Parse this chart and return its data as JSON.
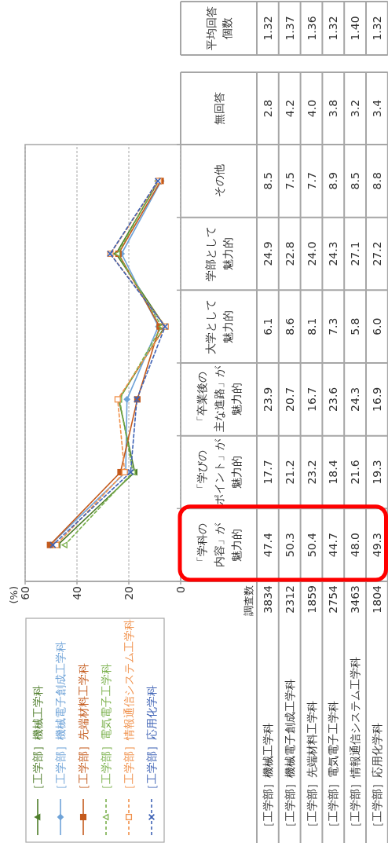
{
  "chart_data": [
    {
      "type": "line",
      "orientation": "horizontal",
      "annotations": [
        "(%)"
      ],
      "categories": [
        "その他",
        "学部として魅力的",
        "大学として魅力的",
        "「卒業後の主な進路」が魅力的",
        "「学びのポイント」が魅力的",
        "「学科の内容」が魅力的"
      ],
      "series": [
        {
          "name": "［工学部］機械工学科",
          "color": "#4e7d2a",
          "marker": "triangle",
          "line_style": "solid",
          "values": [
            8.5,
            24.9,
            6.1,
            23.9,
            17.7,
            47.4
          ],
          "value_labels": [
            "8.5",
            "24.9",
            "6.1",
            "23.9",
            "17.7",
            "47.4"
          ]
        },
        {
          "name": "［工学部］機械電子創成工学科",
          "color": "#6fa3d8",
          "marker": "diamond",
          "line_style": "solid",
          "values": [
            7.5,
            22.8,
            8.6,
            20.7,
            21.2,
            50.3
          ],
          "value_labels": [
            "7.5",
            "22.8",
            "8.6",
            "20.7",
            "21.2",
            "50.3"
          ]
        },
        {
          "name": "［工学部］先端材料工学科",
          "color": "#c45a1c",
          "marker": "square",
          "line_style": "solid",
          "values": [
            7.7,
            24.0,
            8.1,
            16.7,
            23.2,
            50.4
          ],
          "value_labels": [
            "7.7",
            "24.0",
            "8.1",
            "16.7",
            "23.2",
            "50.4"
          ]
        },
        {
          "name": "［工学部］電気電子工学科",
          "color": "#7ab04c",
          "marker": "triangle",
          "line_style": "dashed",
          "values": [
            8.9,
            24.3,
            7.3,
            23.6,
            18.4,
            44.7
          ],
          "value_labels": [
            "8.9",
            "24.3",
            "7.3",
            "23.6",
            "18.4",
            "44.7"
          ]
        },
        {
          "name": "［工学部］情報通信システム工学科",
          "color": "#f0904a",
          "marker": "square",
          "line_style": "dashed",
          "values": [
            8.5,
            27.1,
            5.8,
            24.3,
            21.6,
            48.0
          ],
          "value_labels": [
            "8.5",
            "27.1",
            "5.8",
            "24.3",
            "21.6",
            "48.0"
          ]
        },
        {
          "name": "［工学部］応用化学科",
          "color": "#3f63b5",
          "marker": "cross",
          "line_style": "dashed",
          "values": [
            8.8,
            27.2,
            6.0,
            16.9,
            19.3,
            49.3
          ],
          "value_labels": [
            "8.8",
            "27.2",
            "6.0",
            "16.9",
            "19.3",
            "49.3"
          ]
        }
      ],
      "xlim": [
        60,
        0
      ],
      "xticks": [
        0,
        20,
        40,
        60
      ],
      "grid": "x",
      "legend": "bottom"
    },
    {
      "type": "other",
      "categories": [
        "［工学部］機械工学科",
        "［工学部］機械電子創成工学科",
        "［工学部］先端材料工学科",
        "［工学部］電気電子工学科",
        "［工学部］情報通信システム工学科",
        "［工学部］応用化学科"
      ],
      "series": [
        {
          "name": "平均回答個数",
          "values": [
            1.32,
            1.37,
            1.36,
            1.32,
            1.4,
            1.32
          ],
          "value_labels": [
            "1.32",
            "1.37",
            "1.36",
            "1.32",
            "1.40",
            "1.32"
          ]
        },
        {
          "name": "無回答",
          "values": [
            2.8,
            4.2,
            4.0,
            3.8,
            3.2,
            3.4
          ],
          "value_labels": [
            "2.8",
            "4.2",
            "4.0",
            "3.8",
            "3.2",
            "3.4"
          ]
        },
        {
          "name": "調査数",
          "values": [
            3834,
            2312,
            1859,
            2754,
            3463,
            1804
          ],
          "value_labels": [
            "3834",
            "2312",
            "1859",
            "2754",
            "3463",
            "1804"
          ]
        }
      ]
    }
  ]
}
